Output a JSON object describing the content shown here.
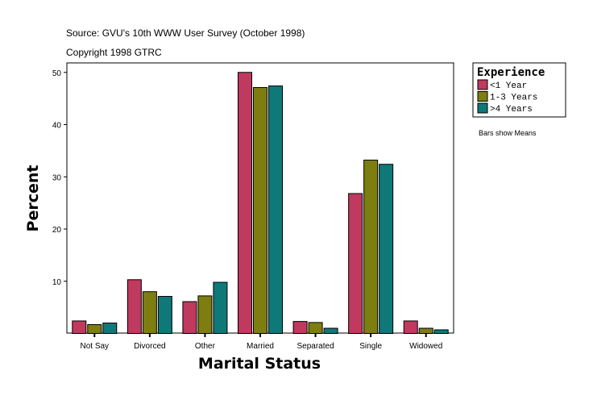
{
  "chart_data": {
    "type": "bar",
    "source": "Source: GVU's 10th WWW User Survey (October 1998)",
    "copyright": "Copyright 1998 GTRC",
    "xlabel": "Marital Status",
    "ylabel": "Percent",
    "ylim": [
      0,
      51.5
    ],
    "yticks": [
      10,
      20,
      30,
      40,
      50
    ],
    "categories": [
      "Not Say",
      "Divorced",
      "Other",
      "Married",
      "Separated",
      "Single",
      "Widowed"
    ],
    "legend_title": "Experience",
    "legend_position": "right",
    "note": "Bars show Means",
    "series": [
      {
        "name": "<1 Year",
        "color": "#c0395f",
        "values": [
          2.4,
          10.3,
          6.1,
          50.0,
          2.3,
          26.8,
          2.4
        ]
      },
      {
        "name": "1-3 Years",
        "color": "#7d7d10",
        "values": [
          1.7,
          8.0,
          7.2,
          47.1,
          2.1,
          33.2,
          1.0
        ]
      },
      {
        "name": ">4 Years",
        "color": "#0f7878",
        "values": [
          2.0,
          7.1,
          9.8,
          47.4,
          1.0,
          32.4,
          0.7
        ]
      }
    ]
  }
}
